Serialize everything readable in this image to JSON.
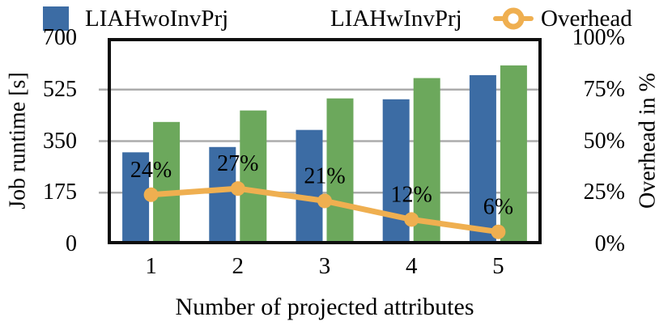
{
  "chart_data": {
    "type": "bar",
    "subtype": "grouped-bars-with-line-overlay",
    "categories": [
      "1",
      "2",
      "3",
      "4",
      "5"
    ],
    "series": [
      {
        "name": "LIAHwoInvPrj",
        "kind": "bar",
        "axis": "left",
        "color": "#3C6CA4",
        "values": [
          312,
          330,
          388,
          492,
          574
        ]
      },
      {
        "name": "LIAHwInvPrj",
        "kind": "bar",
        "axis": "left",
        "color": "#6CA85C",
        "values": [
          415,
          454,
          495,
          564,
          607
        ]
      },
      {
        "name": "Overhead",
        "kind": "line",
        "axis": "right",
        "color": "#EFAF50",
        "values": [
          24,
          27,
          21,
          12,
          6
        ],
        "point_labels": [
          "24%",
          "27%",
          "21%",
          "12%",
          "6%"
        ]
      }
    ],
    "xlabel": "Number of projected attributes",
    "ylabel_left": "Job runtime [s]",
    "ylabel_right": "Overhead in %",
    "yticks_left": [
      0,
      175,
      350,
      525,
      700
    ],
    "yticks_right_labels": [
      "0%",
      "25%",
      "50%",
      "75%",
      "100%"
    ],
    "ylim_left": [
      0,
      700
    ],
    "ylim_right": [
      0,
      100
    ],
    "grid": "horizontal-at-175-350-525",
    "legend_position": "top",
    "colors": {
      "bar1": "#3C6CA4",
      "bar2": "#6CA85C",
      "line": "#EFAF50",
      "gridline": "#ACACAC",
      "frame": "#0d0d0d",
      "text": "#000000"
    }
  }
}
